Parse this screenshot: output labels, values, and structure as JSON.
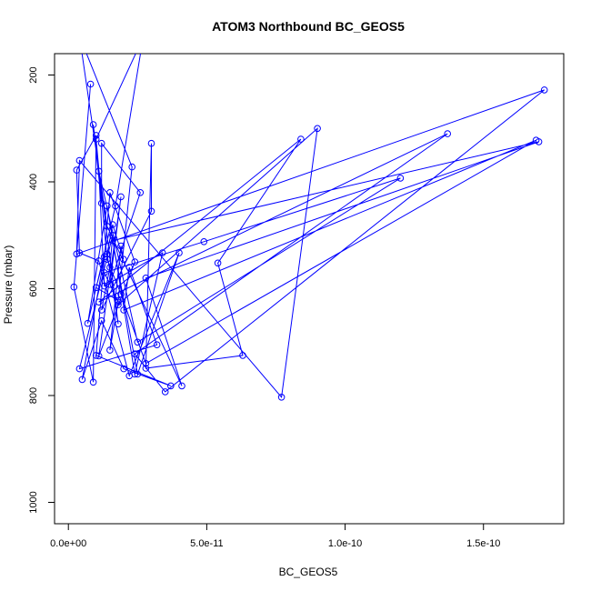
{
  "chart_data": {
    "type": "line",
    "title": "ATOM3 Northbound BC_GEOS5",
    "xlabel": "BC_GEOS5",
    "ylabel": "Pressure (mbar)",
    "xlim": [
      -5e-12,
      1.79e-10
    ],
    "ylim": [
      1040,
      160
    ],
    "y_reversed": true,
    "x_ticks": [
      0,
      5e-11,
      1e-10,
      1.5e-10
    ],
    "x_tick_labels": [
      "0.0e+00",
      "5.0e-11",
      "1.0e-10",
      "1.5e-10"
    ],
    "y_ticks": [
      200,
      400,
      600,
      800,
      1000
    ],
    "y_tick_labels": [
      "200",
      "400",
      "600",
      "800",
      "1000"
    ],
    "grid": false,
    "legend": "none",
    "series_color": "#0000ff",
    "markers": "open-circle",
    "series": [
      {
        "points": [
          [
            8e-12,
            217
          ],
          [
            2e-12,
            597
          ],
          [
            9e-12,
            775
          ],
          [
            1e-11,
            313
          ],
          [
            3e-12,
            378
          ],
          [
            4e-12,
            533
          ],
          [
            1.1e-11,
            548
          ],
          [
            2.2e-11,
            763
          ],
          [
            4e-11,
            533
          ],
          [
            2.5e-11,
            760
          ],
          [
            1.6e-11,
            510
          ],
          [
            1.7e-10,
            325
          ],
          [
            2.8e-11,
            580
          ],
          [
            4.1e-11,
            782
          ],
          [
            1.4e-11,
            483
          ],
          [
            4e-12,
            127
          ],
          [
            2.3e-11,
            372
          ],
          [
            1.8e-11,
            622
          ],
          [
            1e-11,
            598
          ],
          [
            1.3e-11,
            540
          ],
          [
            5e-12,
            770
          ],
          [
            1.2e-11,
            660
          ],
          [
            2e-11,
            750
          ],
          [
            3.7e-11,
            782
          ],
          [
            1e-11,
            725
          ],
          [
            1.5e-11,
            420
          ],
          [
            2.4e-11,
            550
          ],
          [
            1.1e-11,
            726
          ],
          [
            1.9e-11,
            428
          ],
          [
            1.5e-11,
            592
          ],
          [
            2.6e-11,
            420
          ],
          [
            1.2e-11,
            328
          ],
          [
            1.2e-11,
            440
          ],
          [
            9e-12,
            293
          ],
          [
            1.8e-11,
            666
          ],
          [
            1.4e-11,
            535
          ],
          [
            1.6e-11,
            480
          ],
          [
            1.99e-11,
            545
          ],
          [
            1.9e-11,
            520
          ],
          [
            1.5e-11,
            715
          ],
          [
            1.8e-11,
            625
          ],
          [
            1.3e-11,
            570
          ],
          [
            4.9e-11,
            512
          ],
          [
            1.2e-10,
            393
          ],
          [
            2.5e-11,
            700
          ],
          [
            1.1e-11,
            380
          ],
          [
            1.3e-11,
            595
          ],
          [
            3.4e-11,
            533
          ],
          [
            2.4e-11,
            760
          ],
          [
            1.4e-11,
            445
          ],
          [
            7e-12,
            665
          ],
          [
            1.7e-11,
            445
          ],
          [
            2.7e-11,
            130
          ],
          [
            1e-11,
            320
          ],
          [
            1.4e-11,
            545
          ],
          [
            1.9e-11,
            610
          ],
          [
            2.8e-11,
            740
          ],
          [
            1.69e-10,
            322
          ],
          [
            2e-11,
            640
          ],
          [
            2.2e-11,
            560
          ],
          [
            3.2e-11,
            705
          ],
          [
            4e-12,
            750
          ],
          [
            1.6e-11,
            500
          ],
          [
            1.5e-11,
            560
          ],
          [
            1.2e-11,
            640
          ],
          [
            3e-11,
            455
          ],
          [
            3e-11,
            328
          ],
          [
            2.8e-11,
            749
          ],
          [
            6.3e-11,
            725
          ],
          [
            5.4e-11,
            552
          ],
          [
            8.4e-11,
            320
          ],
          [
            1.1e-11,
            625
          ],
          [
            1.37e-10,
            310
          ],
          [
            2.4e-11,
            722
          ],
          [
            3.5e-11,
            793
          ],
          [
            1.72e-10,
            228
          ],
          [
            3e-12,
            535
          ],
          [
            4e-12,
            360
          ],
          [
            7.7e-11,
            803
          ],
          [
            9e-11,
            300
          ],
          [
            1.8e-11,
            630
          ]
        ]
      }
    ]
  }
}
